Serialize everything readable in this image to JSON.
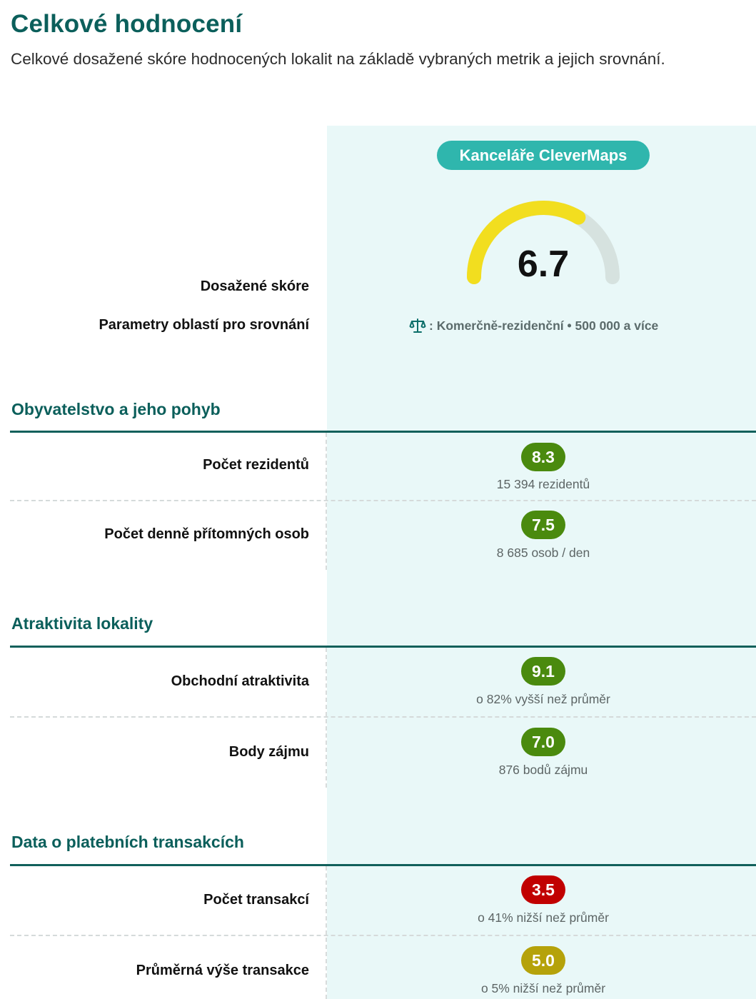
{
  "header": {
    "title": "Celkové hodnocení",
    "subtitle": "Celkové dosažené skóre hodnocených lokalit na základě vybraných metrik a jejich srovnání."
  },
  "location": {
    "name": "Kanceláře CleverMaps",
    "score": "6.7",
    "score_fraction": 0.67,
    "comparison_icon": "scale-icon",
    "comparison_text": ": Komerčně-rezidenční • 500 000 a více"
  },
  "labels": {
    "achieved_score": "Dosažené skóre",
    "comparison_params": "Parametry oblastí pro srovnání"
  },
  "sections": [
    {
      "title": "Obyvatelstvo a jeho pohyb",
      "metrics": [
        {
          "label": "Počet rezidentů",
          "score": "8.3",
          "note": "15 394 rezidentů"
        },
        {
          "label": "Počet denně přítomných osob",
          "score": "7.5",
          "note": "8 685 osob / den"
        }
      ]
    },
    {
      "title": "Atraktivita lokality",
      "metrics": [
        {
          "label": "Obchodní atraktivita",
          "score": "9.1",
          "note": "o 82% vyšší než průměr"
        },
        {
          "label": "Body zájmu",
          "score": "7.0",
          "note": "876 bodů zájmu"
        }
      ]
    },
    {
      "title": "Data o platebních transakcích",
      "metrics": [
        {
          "label": "Počet transakcí",
          "score": "3.5",
          "note": "o 41% nižší než průměr"
        },
        {
          "label": "Průměrná výše transakce",
          "score": "5.0",
          "note": "o 5% nižší než průměr"
        }
      ]
    }
  ],
  "colors": {
    "title": "#0b5f5b",
    "gauge_fill": "#f2de1f",
    "gauge_track": "#d6e2df",
    "good": "#4a8a0e",
    "bad": "#c10000",
    "medium": "#b5a20a"
  }
}
